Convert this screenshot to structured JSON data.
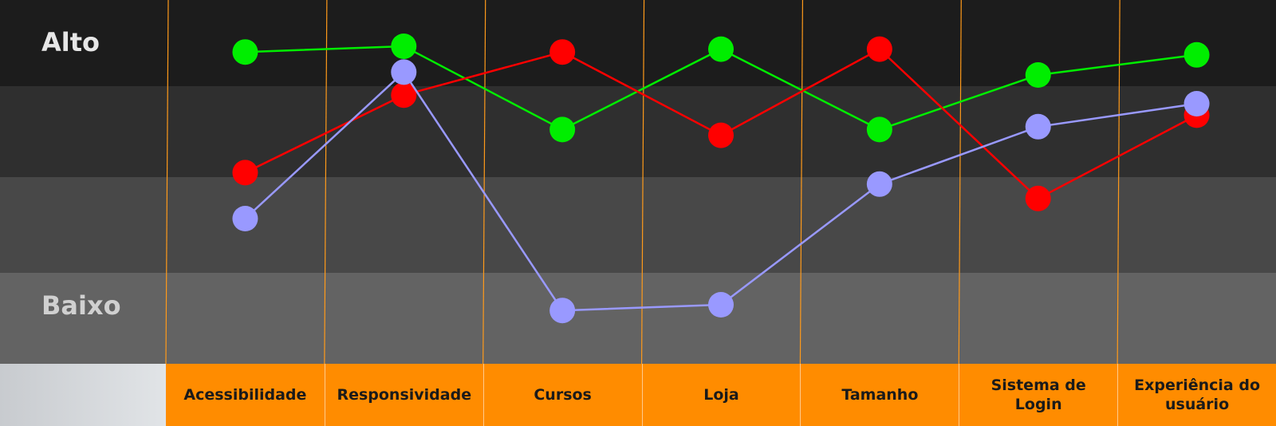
{
  "levels": {
    "high": "Alto",
    "low": "Baixo"
  },
  "colors": {
    "band_accent": "#ff8c00",
    "green_series": "#00ee00",
    "red_series": "#ff0000",
    "blue_series": "#9999ff"
  },
  "chart_data": {
    "type": "line",
    "categories": [
      "Acessibilidade",
      "Responsividade",
      "Cursos",
      "Loja",
      "Tamanho",
      "Sistema de Login",
      "Experiência do usuário"
    ],
    "y_axis": {
      "top_label": "Alto",
      "bottom_label": "Baixo",
      "range": [
        0,
        10
      ]
    },
    "grid": "horizontal bands",
    "series": [
      {
        "color": "#00ee00",
        "values": [
          9.3,
          9.5,
          6.6,
          9.4,
          6.6,
          8.5,
          9.2
        ]
      },
      {
        "color": "#ff0000",
        "values": [
          5.1,
          7.8,
          9.3,
          6.4,
          9.4,
          4.2,
          7.1
        ]
      },
      {
        "color": "#9999ff",
        "values": [
          3.5,
          8.6,
          0.3,
          0.5,
          4.7,
          6.7,
          7.5
        ]
      }
    ]
  }
}
